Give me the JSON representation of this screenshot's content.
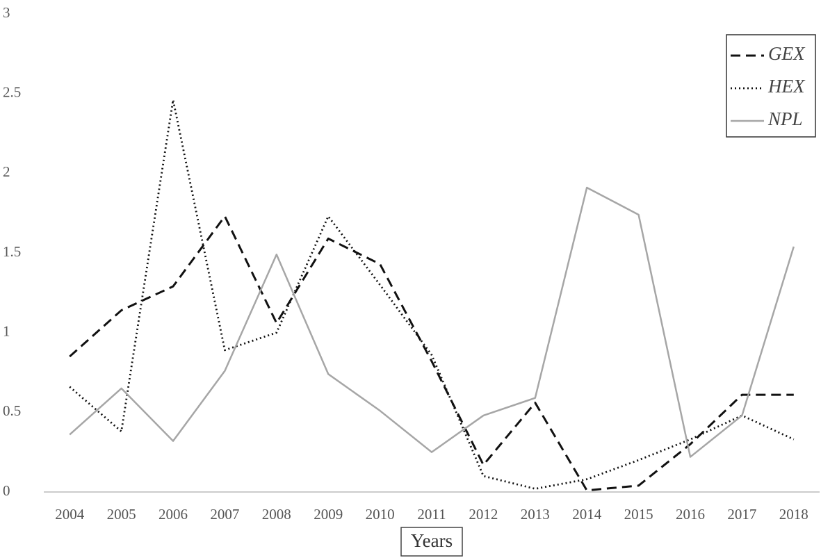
{
  "chart_data": {
    "type": "line",
    "x_label": "Years",
    "categories": [
      "2004",
      "2005",
      "2006",
      "2007",
      "2008",
      "2009",
      "2010",
      "2011",
      "2012",
      "2013",
      "2014",
      "2015",
      "2016",
      "2017",
      "2018"
    ],
    "series": [
      {
        "name": "GEX",
        "color": "#111111",
        "line_style": "dashed",
        "values": [
          0.85,
          1.14,
          1.29,
          1.73,
          1.06,
          1.59,
          1.43,
          0.82,
          0.17,
          0.56,
          0.01,
          0.04,
          0.3,
          0.61,
          0.61
        ]
      },
      {
        "name": "HEX",
        "color": "#111111",
        "line_style": "dotted",
        "values": [
          0.66,
          0.38,
          2.46,
          0.89,
          1.0,
          1.73,
          1.3,
          0.86,
          0.1,
          0.02,
          0.08,
          0.2,
          0.33,
          0.48,
          0.33
        ]
      },
      {
        "name": "NPL",
        "color": "#a6a6a6",
        "line_style": "solid",
        "values": [
          0.36,
          0.65,
          0.32,
          0.76,
          1.49,
          0.74,
          0.51,
          0.25,
          0.48,
          0.59,
          1.91,
          1.74,
          0.22,
          0.48,
          1.54
        ]
      }
    ],
    "ylim": [
      0,
      3
    ],
    "yticks": [
      0,
      0.5,
      1,
      1.5,
      2,
      2.5,
      3
    ],
    "grid": false,
    "legend": "top-right"
  }
}
